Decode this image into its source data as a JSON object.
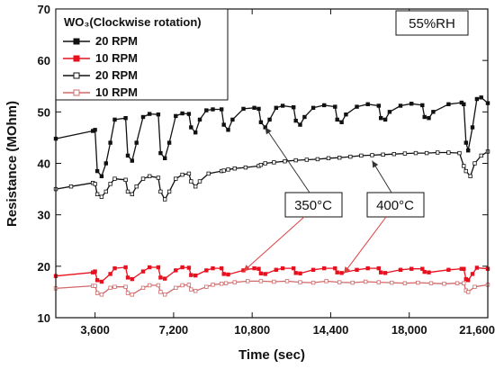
{
  "chart_data": {
    "type": "line",
    "title": "",
    "xlabel": "Time (sec)",
    "ylabel": "Resistance (MOhm)",
    "xlim": [
      1800,
      21600
    ],
    "ylim": [
      10,
      70
    ],
    "x_ticks": [
      3600,
      7200,
      10800,
      14400,
      18000,
      21600
    ],
    "x_tick_labels": [
      "3,600",
      "7,200",
      "10,800",
      "14,400",
      "18,000",
      "21,600"
    ],
    "y_ticks": [
      10,
      20,
      30,
      40,
      50,
      60,
      70
    ],
    "grid": false,
    "legend_title": "WO₃(Clockwise rotation)",
    "legend_position": "top-left",
    "humidity_label": "55%RH",
    "annotations": [
      {
        "text": "350°C",
        "targets": [
          {
            "x": 11400,
            "y": 47
          },
          {
            "x": 10400,
            "y": 19
          }
        ]
      },
      {
        "text": "400°C",
        "targets": [
          {
            "x": 16300,
            "y": 40.5
          },
          {
            "x": 15000,
            "y": 18.6
          }
        ]
      }
    ],
    "series": [
      {
        "name": "20 RPM",
        "color": "#111111",
        "marker": "filled-square",
        "x": [
          1800,
          3500,
          3600,
          3700,
          3900,
          4100,
          4300,
          4500,
          5000,
          5100,
          5300,
          5500,
          5800,
          6100,
          6500,
          6600,
          6800,
          7000,
          7300,
          7600,
          7900,
          8000,
          8200,
          8400,
          8700,
          9000,
          9400,
          9500,
          9700,
          9900,
          10400,
          10900,
          11100,
          11200,
          11400,
          11600,
          11900,
          12200,
          12700,
          12800,
          13000,
          13200,
          13600,
          14100,
          14600,
          14700,
          14900,
          15100,
          15600,
          16100,
          16600,
          16700,
          16900,
          17100,
          17600,
          18100,
          18600,
          18700,
          18900,
          19100,
          19800,
          20400,
          20500,
          20600,
          20700,
          20900,
          21100,
          21300,
          21600
        ],
        "values": [
          44.8,
          46.3,
          46.5,
          38.5,
          37.5,
          40.0,
          44.0,
          48.5,
          48.8,
          41.5,
          40.5,
          44.0,
          49.0,
          49.6,
          49.5,
          42.0,
          41.0,
          44.0,
          49.2,
          49.7,
          49.6,
          47.0,
          46.0,
          48.5,
          50.3,
          50.5,
          50.5,
          47.5,
          46.5,
          48.5,
          50.6,
          50.8,
          50.6,
          48.0,
          47.0,
          48.5,
          50.8,
          51.2,
          50.9,
          48.3,
          47.5,
          49.0,
          50.8,
          51.3,
          51.0,
          48.5,
          48.0,
          49.5,
          51.0,
          51.5,
          51.2,
          48.8,
          48.5,
          50.0,
          51.2,
          51.6,
          51.3,
          49.0,
          48.8,
          50.0,
          51.5,
          51.8,
          51.5,
          44.0,
          42.5,
          47.0,
          52.5,
          52.8,
          51.7
        ]
      },
      {
        "name": "10 RPM",
        "color": "#e8101e",
        "marker": "filled-square",
        "x": [
          1800,
          3500,
          3600,
          3700,
          3900,
          4300,
          4500,
          5000,
          5100,
          5300,
          5800,
          6100,
          6500,
          6600,
          6800,
          7300,
          7600,
          7900,
          8000,
          8200,
          8700,
          9000,
          9400,
          9500,
          9700,
          10400,
          10900,
          11100,
          11200,
          11400,
          11900,
          12200,
          12700,
          12800,
          13000,
          13600,
          14100,
          14600,
          14700,
          14900,
          15600,
          16100,
          16600,
          16700,
          16900,
          17600,
          18100,
          18600,
          18700,
          18900,
          19800,
          20400,
          20500,
          20600,
          20700,
          20900,
          21100,
          21600
        ],
        "values": [
          18.1,
          18.8,
          19.0,
          17.3,
          17.0,
          18.5,
          19.6,
          19.8,
          17.8,
          17.5,
          19.0,
          19.8,
          19.8,
          17.8,
          17.6,
          19.2,
          19.8,
          19.7,
          18.3,
          18.2,
          19.2,
          19.6,
          19.6,
          18.5,
          18.4,
          19.2,
          19.6,
          19.5,
          18.6,
          18.5,
          19.3,
          19.6,
          19.6,
          18.7,
          18.6,
          19.3,
          19.6,
          19.6,
          18.8,
          18.7,
          19.3,
          19.6,
          19.6,
          18.8,
          18.7,
          19.3,
          19.5,
          19.5,
          18.9,
          18.8,
          19.3,
          19.5,
          19.5,
          17.5,
          17.3,
          18.5,
          19.7,
          19.5
        ]
      },
      {
        "name": "20 RPM",
        "color": "#111111",
        "marker": "open-square",
        "x": [
          1800,
          2500,
          3500,
          3600,
          3700,
          3900,
          4100,
          4300,
          4500,
          5000,
          5100,
          5300,
          5500,
          5800,
          6100,
          6500,
          6600,
          6800,
          7000,
          7300,
          7600,
          7900,
          8000,
          8200,
          8400,
          8800,
          9400,
          9500,
          9700,
          10000,
          10500,
          11100,
          11200,
          11400,
          11800,
          12300,
          12800,
          13300,
          13800,
          14300,
          14800,
          15300,
          15800,
          16300,
          16800,
          17300,
          17800,
          18300,
          18800,
          19300,
          19800,
          20300,
          20500,
          20600,
          20800,
          21000,
          21300,
          21600
        ],
        "values": [
          35.0,
          35.5,
          36.2,
          36.0,
          34.0,
          33.5,
          34.5,
          36.0,
          37.0,
          36.8,
          34.5,
          34.0,
          35.5,
          37.0,
          37.5,
          37.2,
          34.5,
          33.0,
          34.5,
          37.0,
          37.8,
          38.0,
          36.5,
          35.5,
          36.5,
          38.0,
          38.5,
          38.6,
          38.8,
          39.0,
          39.2,
          39.5,
          39.7,
          40.0,
          40.2,
          40.4,
          40.6,
          40.7,
          40.8,
          41.0,
          41.1,
          41.3,
          41.5,
          41.6,
          41.7,
          41.8,
          41.9,
          42.0,
          42.0,
          42.1,
          42.1,
          42.0,
          39.5,
          38.5,
          37.5,
          40.0,
          41.5,
          42.3
        ]
      },
      {
        "name": "10 RPM",
        "color": "#d06a6a",
        "marker": "open-square",
        "x": [
          1800,
          3500,
          3600,
          3700,
          3900,
          4300,
          4500,
          5000,
          5100,
          5300,
          5800,
          6100,
          6500,
          6600,
          6800,
          7300,
          7600,
          7900,
          8000,
          8200,
          8700,
          9000,
          9400,
          9600,
          10000,
          10600,
          11200,
          11800,
          12400,
          13000,
          13600,
          14200,
          14800,
          15400,
          16000,
          16600,
          17200,
          17800,
          18400,
          19000,
          19600,
          20200,
          20500,
          20600,
          20700,
          21000,
          21600
        ],
        "values": [
          15.7,
          16.2,
          16.2,
          14.8,
          14.5,
          15.8,
          16.0,
          16.0,
          14.8,
          14.5,
          15.8,
          16.3,
          16.3,
          15.0,
          14.5,
          15.8,
          16.3,
          16.4,
          15.5,
          15.2,
          16.0,
          16.4,
          16.6,
          16.7,
          16.9,
          17.1,
          17.1,
          17.0,
          17.1,
          16.9,
          16.8,
          17.1,
          16.9,
          16.8,
          17.0,
          16.9,
          16.8,
          16.7,
          16.8,
          16.7,
          16.6,
          16.7,
          16.7,
          15.3,
          15.0,
          16.0,
          16.4
        ]
      }
    ]
  }
}
